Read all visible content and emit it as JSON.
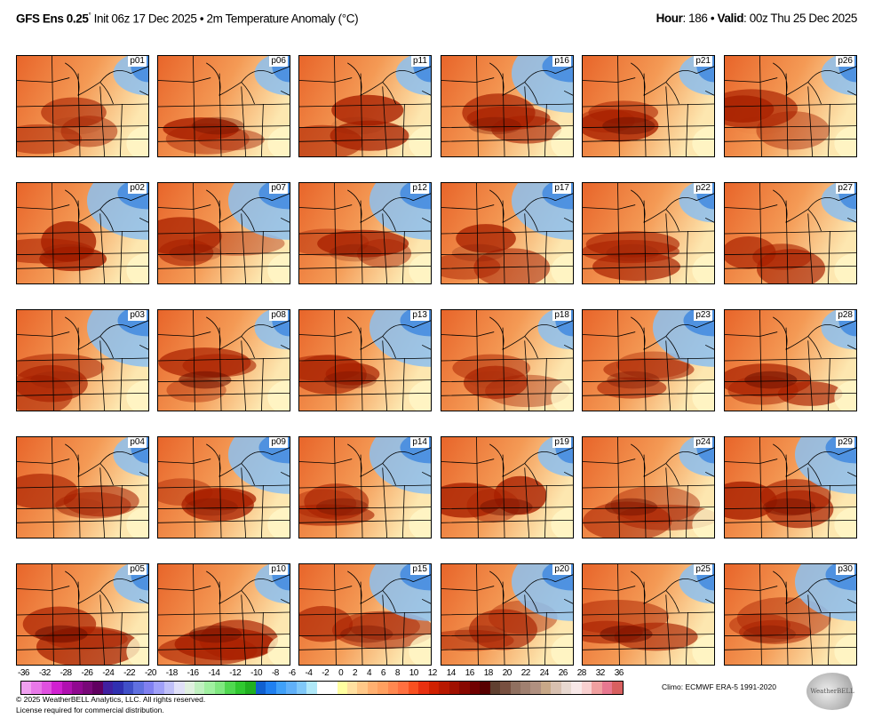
{
  "header": {
    "model": "GFS Ens 0.25",
    "deg": "°",
    "init": " Init 06z 17 Dec 2025 • 2m Temperature Anomaly (°C)",
    "hour_label": "Hour",
    "hour_value": ": 186 • ",
    "valid_label": "Valid",
    "valid_value": ": 00z Thu 25 Dec 2025"
  },
  "panels": [
    "p01",
    "p02",
    "p03",
    "p04",
    "p05",
    "p06",
    "p07",
    "p08",
    "p09",
    "p10",
    "p11",
    "p12",
    "p13",
    "p14",
    "p15",
    "p16",
    "p17",
    "p18",
    "p19",
    "p20",
    "p21",
    "p22",
    "p23",
    "p24",
    "p25",
    "p26",
    "p27",
    "p28",
    "p29",
    "p30"
  ],
  "colorbar": {
    "ticks": [
      "-36",
      "-32",
      "-28",
      "-26",
      "-24",
      "-22",
      "-20",
      "-18",
      "-16",
      "-14",
      "-12",
      "-10",
      "-8",
      "-6",
      "-4",
      "-2",
      "0",
      "2",
      "4",
      "6",
      "8",
      "10",
      "12",
      "14",
      "16",
      "18",
      "20",
      "22",
      "24",
      "26",
      "28",
      "32",
      "36"
    ],
    "colors": [
      "#f0a0f0",
      "#e878e8",
      "#e050e0",
      "#d020d0",
      "#b010b0",
      "#900890",
      "#780878",
      "#600060",
      "#4020a0",
      "#3030b0",
      "#4050c8",
      "#6070e0",
      "#8080f0",
      "#a0a0f8",
      "#c0c0f8",
      "#e0e0f8",
      "#e0f0e0",
      "#c0f0c0",
      "#a0f0a0",
      "#80e880",
      "#50d850",
      "#30c830",
      "#20b020",
      "#1060d0",
      "#2080f0",
      "#40a0f8",
      "#60b0f8",
      "#80c8f8",
      "#b0e8f8",
      "#ffffff",
      "#ffffff",
      "#ffffa0",
      "#ffe0a0",
      "#ffc888",
      "#ffb070",
      "#ffa060",
      "#ff8850",
      "#ff7040",
      "#f85020",
      "#e83010",
      "#d02000",
      "#b81800",
      "#a01000",
      "#880800",
      "#700000",
      "#580000",
      "#604030",
      "#785040",
      "#907060",
      "#a08070",
      "#b09080",
      "#c8a888",
      "#d8c0b0",
      "#e8d8d0",
      "#f8e8e8",
      "#f8d0d0",
      "#f0a0a0",
      "#e87890",
      "#d86060"
    ]
  },
  "footer": {
    "copyright": "© 2025 WeatherBELL Analytics, LLC. All rights reserved.",
    "license": "License required for commercial distribution.",
    "climo": "Climo: ECMWF ERA-5 1991-2020",
    "logo": "WeatherBELL"
  }
}
